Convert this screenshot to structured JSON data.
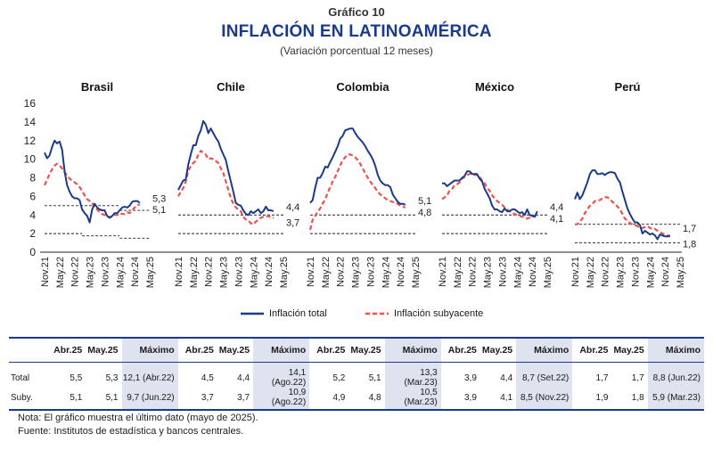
{
  "header": {
    "label": "Gráfico 10",
    "title": "INFLACIÓN EN LATINOAMÉRICA",
    "subtitle": "(Variación porcentual 12 meses)"
  },
  "colors": {
    "total": "#1b3a8c",
    "core": "#f0504f",
    "ref": "#222222"
  },
  "chart_data": {
    "type": "line",
    "ylim": [
      0,
      16
    ],
    "yticks": [
      "0",
      "2",
      "4",
      "6",
      "8",
      "10",
      "12",
      "14",
      "16"
    ],
    "xtick_labels": [
      "Nov.21",
      "May.22",
      "Nov.22",
      "May.23",
      "Nov.23",
      "May.24",
      "Nov.24",
      "May.25"
    ],
    "x_range": [
      "2021-11",
      "2025-05"
    ],
    "legend": {
      "position": "bottom",
      "total": "Inflación total",
      "core": "Inflación subyacente"
    },
    "panels": [
      {
        "name": "Brasil",
        "total": [
          10.7,
          10.1,
          10.4,
          11.3,
          12.0,
          11.7,
          11.9,
          11.0,
          8.7,
          7.2,
          6.5,
          6.0,
          5.8,
          5.8,
          5.6,
          4.6,
          4.2,
          3.9,
          3.2,
          4.6,
          5.2,
          4.8,
          4.6,
          4.5,
          4.5,
          3.9,
          3.7,
          3.9,
          4.2,
          4.2,
          4.5,
          4.8,
          4.9,
          4.8,
          5.0,
          5.4,
          5.5,
          5.5,
          5.3
        ],
        "core": [
          7.2,
          7.8,
          8.4,
          8.9,
          9.3,
          9.5,
          9.3,
          9.0,
          8.6,
          8.2,
          7.9,
          7.7,
          7.5,
          7.3,
          7.0,
          6.6,
          6.1,
          5.7,
          5.5,
          5.3,
          4.8,
          4.6,
          4.3,
          4.1,
          4.0,
          3.8,
          3.8,
          3.8,
          4.0,
          4.0,
          4.2,
          4.1,
          4.1,
          4.3,
          4.2,
          4.5,
          4.8,
          5.1,
          5.1
        ],
        "ref_total": [
          {
            "x": [
              "2021-11",
              "2024-05"
            ],
            "y": 5.0
          },
          {
            "x": [
              "2024-05",
              "2025-05"
            ],
            "y": 4.5
          }
        ],
        "ref_core": [
          {
            "x": [
              "2021-11",
              "2023-02"
            ],
            "y": 2.0
          },
          {
            "x": [
              "2023-02",
              "2024-05"
            ],
            "y": 1.75
          },
          {
            "x": [
              "2024-05",
              "2025-05"
            ],
            "y": 1.5
          }
        ],
        "end_labels": [
          "5,3",
          "5,1"
        ]
      },
      {
        "name": "Chile",
        "total": [
          6.7,
          7.2,
          7.7,
          7.8,
          9.4,
          10.5,
          11.5,
          11.5,
          12.5,
          13.1,
          14.1,
          13.7,
          12.8,
          13.3,
          12.8,
          12.3,
          11.9,
          11.1,
          10.5,
          9.9,
          8.7,
          7.6,
          6.5,
          5.3,
          5.1,
          5.0,
          4.5,
          4.1,
          4.0,
          4.4,
          4.2,
          4.4,
          4.6,
          4.2,
          4.4,
          4.9,
          4.5,
          4.5,
          4.4
        ],
        "core": [
          6.0,
          6.5,
          6.9,
          7.6,
          8.8,
          9.2,
          9.6,
          9.8,
          10.5,
          10.9,
          10.7,
          10.5,
          10.0,
          10.1,
          10.0,
          9.8,
          9.6,
          9.0,
          8.5,
          7.6,
          6.7,
          5.8,
          5.2,
          4.8,
          4.6,
          4.4,
          3.8,
          3.5,
          3.4,
          3.1,
          3.0,
          3.3,
          3.5,
          3.7,
          3.8,
          3.8,
          3.9,
          3.7,
          3.7
        ],
        "ref_total": [
          {
            "x": [
              "2021-11",
              "2025-05"
            ],
            "y": 4.0
          }
        ],
        "ref_core": [
          {
            "x": [
              "2021-11",
              "2025-05"
            ],
            "y": 2.0
          }
        ],
        "end_labels": [
          "4,4",
          "3,7"
        ]
      },
      {
        "name": "Colombia",
        "total": [
          5.3,
          5.6,
          6.9,
          8.0,
          8.0,
          8.5,
          9.2,
          9.1,
          9.7,
          10.2,
          10.8,
          11.4,
          12.2,
          12.5,
          13.1,
          13.2,
          13.3,
          13.3,
          12.8,
          12.4,
          12.1,
          11.8,
          11.4,
          10.9,
          10.5,
          10.0,
          9.3,
          8.3,
          7.7,
          7.4,
          7.2,
          7.2,
          7.0,
          6.2,
          5.8,
          5.4,
          5.2,
          5.2,
          5.1
        ],
        "core": [
          2.4,
          3.5,
          3.9,
          4.3,
          4.7,
          5.2,
          5.7,
          6.4,
          7.0,
          7.6,
          8.1,
          8.7,
          9.3,
          9.9,
          10.2,
          10.5,
          10.5,
          10.4,
          10.2,
          9.9,
          9.5,
          9.0,
          8.5,
          8.0,
          7.6,
          7.2,
          6.9,
          6.5,
          6.2,
          6.0,
          5.8,
          5.6,
          5.5,
          5.4,
          5.3,
          5.2,
          5.0,
          4.9,
          4.8
        ],
        "ref_total": [
          {
            "x": [
              "2021-11",
              "2025-05"
            ],
            "y": 4.0
          }
        ],
        "ref_core": [
          {
            "x": [
              "2021-11",
              "2025-05"
            ],
            "y": 2.0
          }
        ],
        "end_labels": [
          "5,1",
          "4,8"
        ]
      },
      {
        "name": "México",
        "total": [
          7.4,
          7.4,
          7.1,
          7.3,
          7.5,
          7.7,
          7.7,
          7.7,
          8.0,
          8.2,
          8.7,
          8.7,
          8.4,
          8.4,
          8.4,
          7.9,
          7.6,
          6.8,
          6.3,
          5.8,
          5.0,
          4.6,
          4.6,
          4.4,
          4.3,
          4.7,
          4.4,
          4.4,
          4.6,
          4.6,
          4.4,
          4.2,
          4.3,
          4.0,
          4.6,
          4.0,
          3.9,
          3.8,
          4.4
        ],
        "core": [
          5.7,
          5.9,
          6.1,
          6.6,
          6.8,
          7.2,
          7.3,
          7.5,
          7.9,
          8.1,
          8.3,
          8.4,
          8.5,
          8.3,
          8.3,
          8.1,
          7.7,
          7.4,
          6.9,
          6.6,
          6.1,
          5.8,
          5.5,
          5.3,
          5.1,
          4.8,
          4.6,
          4.4,
          4.2,
          4.1,
          4.0,
          3.9,
          3.8,
          3.8,
          3.6,
          3.7,
          3.9,
          3.9,
          4.1
        ],
        "ref_total": [
          {
            "x": [
              "2021-11",
              "2025-05"
            ],
            "y": 4.0
          }
        ],
        "ref_core": [
          {
            "x": [
              "2021-11",
              "2025-05"
            ],
            "y": 2.0
          }
        ],
        "end_labels": [
          "4,4",
          "4,1"
        ]
      },
      {
        "name": "Perú",
        "total": [
          5.7,
          6.4,
          5.7,
          6.1,
          6.8,
          7.5,
          8.4,
          8.8,
          8.8,
          8.4,
          8.4,
          8.5,
          8.3,
          8.5,
          8.6,
          8.6,
          8.5,
          7.9,
          7.5,
          6.5,
          5.6,
          4.7,
          4.1,
          3.6,
          3.2,
          3.2,
          2.9,
          2.0,
          2.3,
          2.1,
          1.9,
          2.0,
          1.8,
          1.4,
          1.9,
          1.8,
          1.7,
          1.7,
          1.7
        ],
        "core": [
          3.0,
          3.0,
          3.3,
          3.6,
          4.2,
          4.6,
          5.0,
          5.2,
          5.5,
          5.6,
          5.6,
          5.8,
          5.9,
          5.9,
          5.7,
          5.4,
          5.2,
          4.9,
          4.6,
          4.1,
          3.6,
          3.4,
          3.1,
          3.0,
          2.9,
          2.8,
          2.6,
          2.6,
          2.7,
          2.8,
          2.6,
          2.5,
          2.5,
          2.3,
          2.2,
          2.0,
          1.9,
          1.8,
          1.8
        ],
        "ref_total": [
          {
            "x": [
              "2021-11",
              "2025-05"
            ],
            "y": 3.0
          }
        ],
        "ref_core": [
          {
            "x": [
              "2021-11",
              "2025-05"
            ],
            "y": 1.0
          }
        ],
        "end_labels": [
          "1,8",
          "1,7"
        ]
      }
    ]
  },
  "table": {
    "col_headers": [
      "Abr.25",
      "May.25",
      "Máximo"
    ],
    "row_labels": [
      "Total",
      "Suby."
    ],
    "countries": [
      {
        "rows": [
          [
            "5,5",
            "5,3",
            "12,1 (Abr.22)"
          ],
          [
            "5,1",
            "5,1",
            "9,7 (Jun.22)"
          ]
        ]
      },
      {
        "rows": [
          [
            "4,5",
            "4,4",
            "14,1 (Ago.22)"
          ],
          [
            "3,7",
            "3,7",
            "10,9 (Ago.22)"
          ]
        ]
      },
      {
        "rows": [
          [
            "5,2",
            "5,1",
            "13,3 (Mar.23)"
          ],
          [
            "4,9",
            "4,8",
            "10,5 (Mar.23)"
          ]
        ]
      },
      {
        "rows": [
          [
            "3,9",
            "4,4",
            "8,7 (Set.22)"
          ],
          [
            "3,9",
            "4,1",
            "8,5 (Nov.22)"
          ]
        ]
      },
      {
        "rows": [
          [
            "1,7",
            "1,7",
            "8,8 (Jun.22)"
          ],
          [
            "1,9",
            "1,8",
            "5,9 (Mar.23)"
          ]
        ]
      }
    ]
  },
  "notes": [
    "Nota: El gráfico muestra el último dato (mayo de 2025).",
    "Fuente: Institutos de estadística y bancos centrales."
  ]
}
